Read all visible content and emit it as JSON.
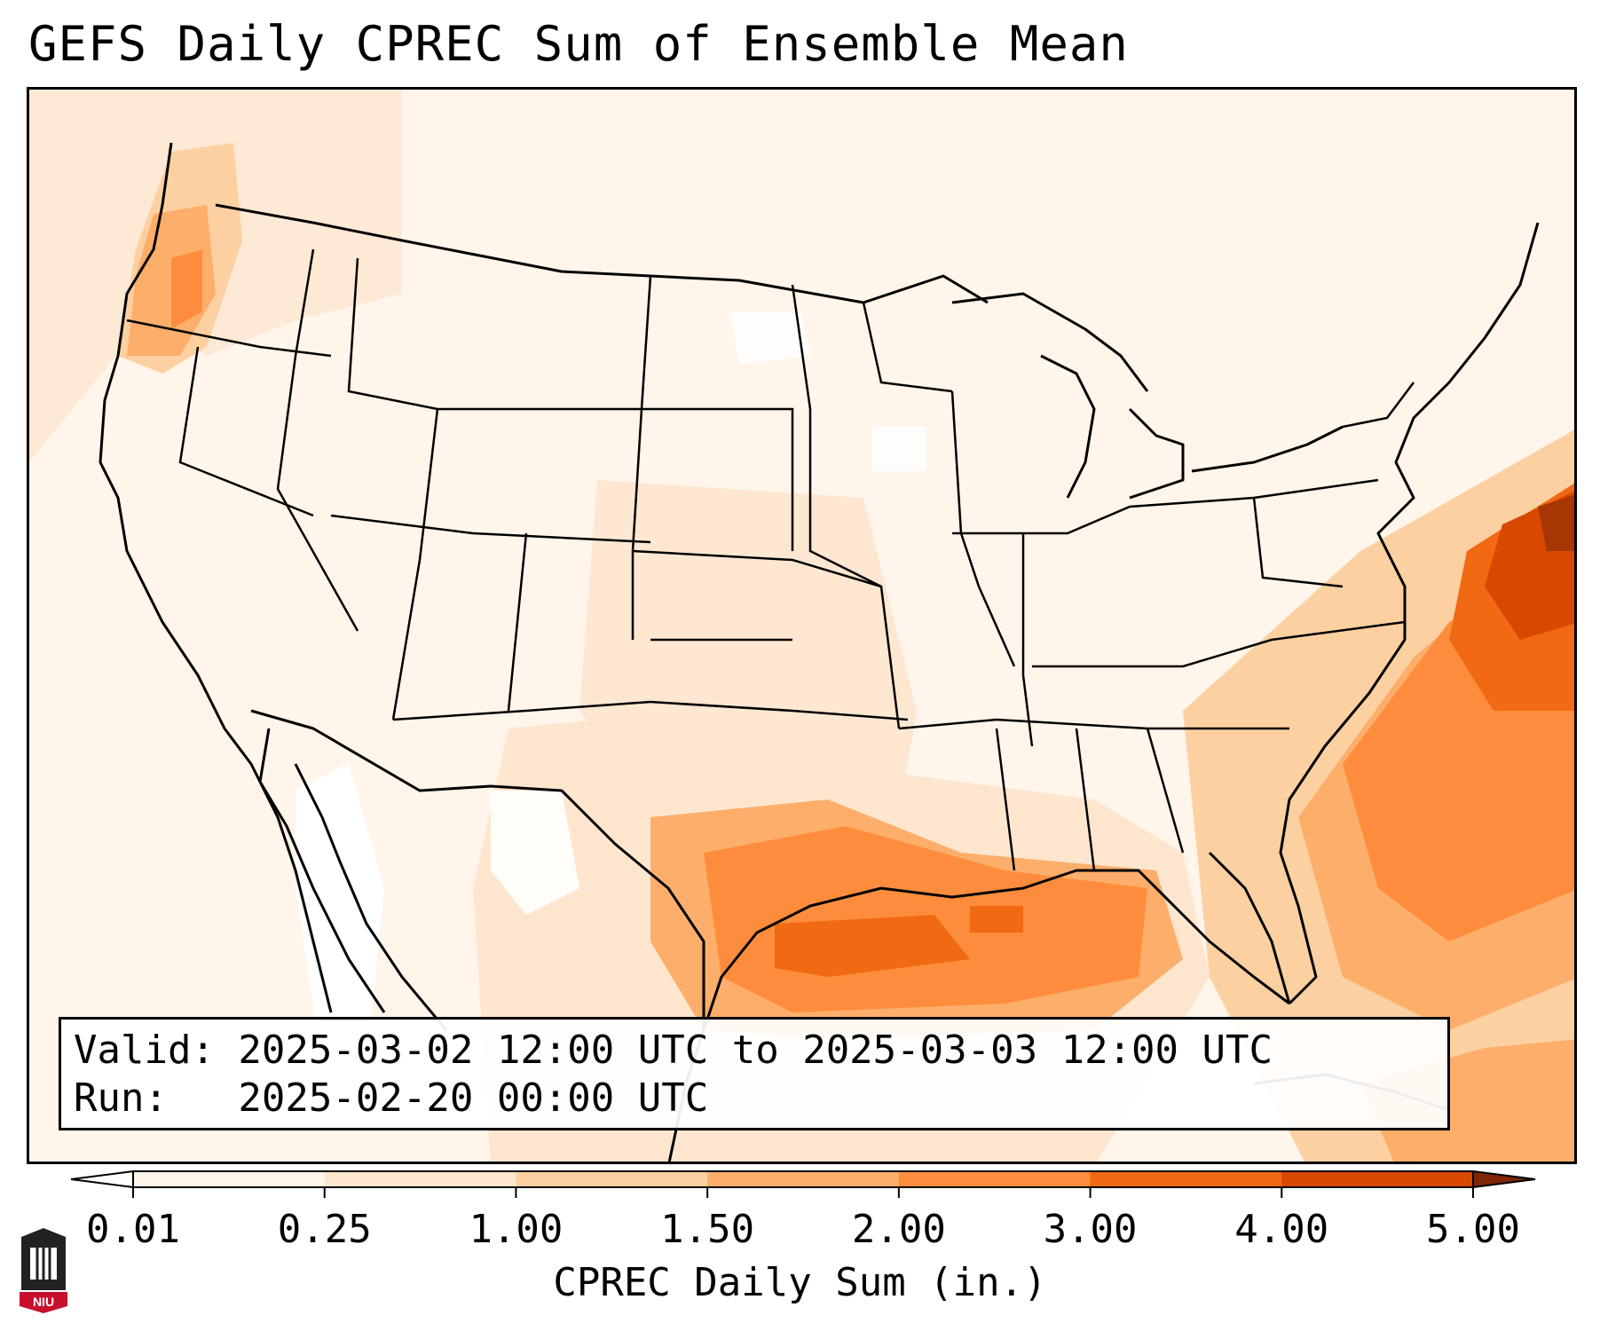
{
  "title": "GEFS Daily CPREC Sum of Ensemble Mean",
  "valid_line": "Valid: 2025-03-02 12:00 UTC to 2025-03-03 12:00 UTC",
  "run_line": "Run:   2025-02-20 00:00 UTC",
  "colorbar": {
    "label": "CPREC Daily Sum (in.)",
    "ticks": [
      "0.01",
      "0.25",
      "1.00",
      "1.50",
      "2.00",
      "3.00",
      "4.00",
      "5.00"
    ],
    "colors": [
      "#fff5eb",
      "#fee6ce",
      "#fdd0a2",
      "#fdae6b",
      "#fd8d3c",
      "#f16913",
      "#d94801",
      "#a63603"
    ],
    "under_color": "#ffffff",
    "over_color": "#7f2704"
  },
  "logo": {
    "name": "niu-logo-icon",
    "text": "NIU"
  }
}
